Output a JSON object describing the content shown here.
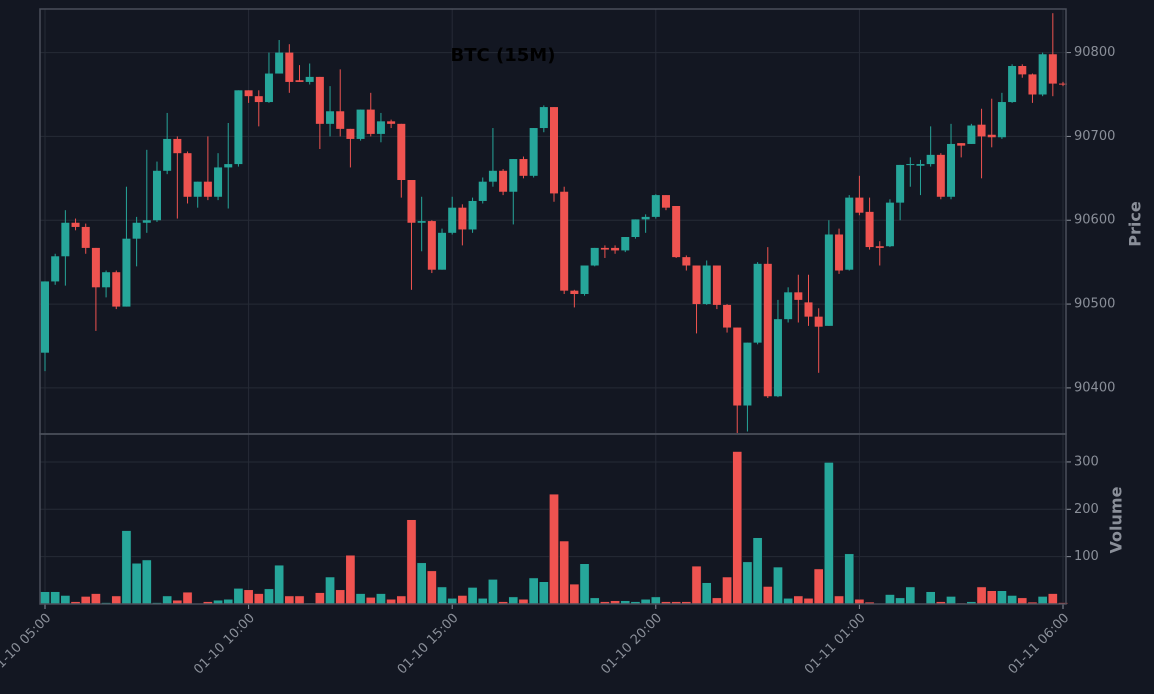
{
  "chart_data": [
    {
      "type": "candlestick",
      "title": "BTC (15M)",
      "y_label": "Price",
      "up_color": "#26a69a",
      "down_color": "#ef5350",
      "grid": true,
      "x": [
        "01-10 05:00",
        "01-10 05:15",
        "01-10 05:30",
        "01-10 05:45",
        "01-10 06:00",
        "01-10 06:15",
        "01-10 06:30",
        "01-10 06:45",
        "01-10 07:00",
        "01-10 07:15",
        "01-10 07:30",
        "01-10 07:45",
        "01-10 08:00",
        "01-10 08:15",
        "01-10 08:30",
        "01-10 08:45",
        "01-10 09:00",
        "01-10 09:15",
        "01-10 09:30",
        "01-10 09:45",
        "01-10 10:00",
        "01-10 10:15",
        "01-10 10:30",
        "01-10 10:45",
        "01-10 11:00",
        "01-10 11:15",
        "01-10 11:30",
        "01-10 11:45",
        "01-10 12:00",
        "01-10 12:15",
        "01-10 12:30",
        "01-10 12:45",
        "01-10 13:00",
        "01-10 13:15",
        "01-10 13:30",
        "01-10 13:45",
        "01-10 14:00",
        "01-10 14:15",
        "01-10 14:30",
        "01-10 14:45",
        "01-10 15:00",
        "01-10 15:15",
        "01-10 15:30",
        "01-10 15:45",
        "01-10 16:00",
        "01-10 16:15",
        "01-10 16:30",
        "01-10 16:45",
        "01-10 17:00",
        "01-10 17:15",
        "01-10 17:30",
        "01-10 17:45",
        "01-10 18:00",
        "01-10 18:15",
        "01-10 18:30",
        "01-10 18:45",
        "01-10 19:00",
        "01-10 19:15",
        "01-10 19:30",
        "01-10 19:45",
        "01-10 20:00",
        "01-10 20:15",
        "01-10 20:30",
        "01-10 20:45",
        "01-10 21:00",
        "01-10 21:15",
        "01-10 21:30",
        "01-10 21:45",
        "01-10 22:00",
        "01-10 22:15",
        "01-10 22:30",
        "01-10 22:45",
        "01-10 23:00",
        "01-10 23:15",
        "01-10 23:30",
        "01-10 23:45",
        "01-11 00:00",
        "01-11 00:15",
        "01-11 00:30",
        "01-11 00:45",
        "01-11 01:00",
        "01-11 01:15",
        "01-11 01:30",
        "01-11 01:45",
        "01-11 02:00",
        "01-11 02:15",
        "01-11 02:30",
        "01-11 02:45",
        "01-11 03:00",
        "01-11 03:15",
        "01-11 03:30",
        "01-11 03:45",
        "01-11 04:00",
        "01-11 04:15",
        "01-11 04:30",
        "01-11 04:45",
        "01-11 05:00",
        "01-11 05:15",
        "01-11 05:30",
        "01-11 05:45",
        "01-11 06:00"
      ],
      "open": [
        90442,
        90527,
        90557,
        90597,
        90592,
        90567,
        90520,
        90538,
        90497,
        90578,
        90597,
        90600,
        90659,
        90697,
        90680,
        90628,
        90646,
        90628,
        90663,
        90667,
        90755,
        90748,
        90741,
        90775,
        90800,
        90767,
        90765,
        90771,
        90715,
        90730,
        90709,
        90697,
        90732,
        90703,
        90718,
        90715,
        90648,
        90597,
        90599,
        90541,
        90585,
        90615,
        90589,
        90623,
        90646,
        90659,
        90634,
        90673,
        90653,
        90710,
        90735,
        90634,
        90516,
        90512,
        90546,
        90567,
        90567,
        90564,
        90580,
        90601,
        90604,
        90630,
        90617,
        90556,
        90546,
        90500,
        90546,
        90499,
        90472,
        90379,
        90454,
        90548,
        90390,
        90482,
        90514,
        90502,
        90485,
        90474,
        90583,
        90541,
        90627,
        90610,
        90569,
        90569,
        90621,
        90666,
        90665,
        90667,
        90678,
        90628,
        90692,
        90691,
        90714,
        90702,
        90699,
        90741,
        90784,
        90774,
        90750,
        90798,
        90763
      ],
      "high": [
        90527,
        90560,
        90612,
        90602,
        90596,
        90567,
        90540,
        90540,
        90640,
        90604,
        90684,
        90670,
        90728,
        90700,
        90682,
        90646,
        90700,
        90680,
        90716,
        90755,
        90755,
        90755,
        90800,
        90815,
        90810,
        90785,
        90787,
        90771,
        90760,
        90780,
        90709,
        90732,
        90752,
        90728,
        90720,
        90715,
        90648,
        90628,
        90600,
        90590,
        90628,
        90619,
        90627,
        90651,
        90710,
        90661,
        90673,
        90676,
        90710,
        90737,
        90735,
        90640,
        90517,
        90546,
        90567,
        90570,
        90570,
        90580,
        90601,
        90607,
        90631,
        90630,
        90617,
        90558,
        90546,
        90552,
        90546,
        90500,
        90472,
        90454,
        90550,
        90568,
        90505,
        90520,
        90535,
        90535,
        90495,
        90600,
        90590,
        90630,
        90653,
        90627,
        90575,
        90625,
        90666,
        90675,
        90672,
        90712,
        90680,
        90715,
        90692,
        90715,
        90733,
        90745,
        90752,
        90786,
        90786,
        90775,
        90800,
        90847,
        90765
      ],
      "low": [
        90420,
        90523,
        90522,
        90588,
        90560,
        90468,
        90508,
        90494,
        90497,
        90545,
        90585,
        90598,
        90655,
        90602,
        90620,
        90615,
        90624,
        90624,
        90614,
        90664,
        90740,
        90712,
        90740,
        90775,
        90752,
        90765,
        90762,
        90685,
        90700,
        90700,
        90663,
        90695,
        90700,
        90693,
        90710,
        90627,
        90517,
        90563,
        90537,
        90541,
        90583,
        90570,
        90585,
        90620,
        90640,
        90630,
        90595,
        90650,
        90651,
        90705,
        90622,
        90512,
        90496,
        90510,
        90545,
        90555,
        90560,
        90562,
        90578,
        90585,
        90602,
        90612,
        90555,
        90540,
        90465,
        90499,
        90494,
        90466,
        90346,
        90348,
        90452,
        90388,
        90389,
        90478,
        90478,
        90474,
        90418,
        90474,
        90536,
        90540,
        90606,
        90565,
        90546,
        90568,
        90600,
        90640,
        90630,
        90664,
        90625,
        90625,
        90675,
        90691,
        90650,
        90687,
        90697,
        90740,
        90770,
        90740,
        90748,
        90748,
        90760
      ],
      "close": [
        90527,
        90557,
        90597,
        90592,
        90567,
        90520,
        90538,
        90497,
        90578,
        90597,
        90600,
        90659,
        90697,
        90680,
        90628,
        90646,
        90628,
        90663,
        90667,
        90755,
        90748,
        90741,
        90775,
        90800,
        90765,
        90765,
        90771,
        90715,
        90730,
        90709,
        90697,
        90732,
        90703,
        90718,
        90715,
        90648,
        90597,
        90599,
        90541,
        90585,
        90615,
        90589,
        90623,
        90646,
        90659,
        90634,
        90673,
        90653,
        90710,
        90735,
        90632,
        90516,
        90512,
        90546,
        90567,
        90565,
        90564,
        90580,
        90601,
        90604,
        90630,
        90615,
        90556,
        90546,
        90500,
        90546,
        90499,
        90472,
        90379,
        90454,
        90548,
        90390,
        90482,
        90514,
        90505,
        90485,
        90473,
        90583,
        90540,
        90627,
        90609,
        90568,
        90567,
        90621,
        90666,
        90667,
        90667,
        90678,
        90628,
        90691,
        90689,
        90713,
        90700,
        90699,
        90741,
        90784,
        90774,
        90750,
        90798,
        90763,
        90762
      ],
      "ylim": [
        90345,
        90852
      ],
      "yticks": [
        90400,
        90500,
        90600,
        90700,
        90800
      ],
      "xticks": [
        "01-10 05:00",
        "01-10 10:00",
        "01-10 15:00",
        "01-10 20:00",
        "01-11 01:00",
        "01-11 06:00"
      ]
    },
    {
      "type": "bar",
      "y_label": "Volume",
      "values": [
        26,
        26,
        18,
        5,
        16,
        22,
        3,
        17,
        155,
        86,
        93,
        3,
        17,
        8,
        25,
        1,
        5,
        8,
        10,
        33,
        30,
        22,
        32,
        82,
        17,
        17,
        2,
        24,
        57,
        30,
        103,
        22,
        14,
        22,
        10,
        17,
        178,
        87,
        70,
        36,
        12,
        18,
        35,
        12,
        52,
        5,
        15,
        10,
        55,
        47,
        232,
        133,
        42,
        85,
        13,
        5,
        7,
        7,
        5,
        10,
        15,
        5,
        5,
        5,
        80,
        45,
        13,
        57,
        322,
        89,
        140,
        37,
        78,
        12,
        17,
        12,
        74,
        299,
        17,
        106,
        10,
        4,
        1,
        20,
        13,
        36,
        1,
        26,
        5,
        16,
        2,
        5,
        36,
        28,
        28,
        18,
        13,
        4,
        16,
        22,
        3
      ],
      "ylim": [
        0,
        359
      ],
      "yticks": [
        100,
        200,
        300
      ]
    }
  ]
}
